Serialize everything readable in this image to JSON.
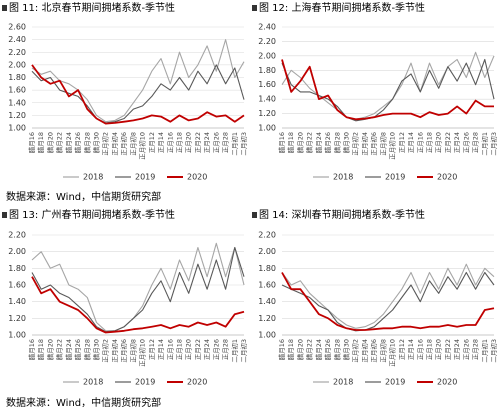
{
  "chart_data": [
    {
      "type": "line",
      "title": "图 11:  北京春节期间拥堵系数-季节性",
      "categories": [
        "腊月16",
        "腊月18",
        "腊月20",
        "腊月22",
        "腊月24",
        "腊月26",
        "腊月28",
        "腊月30",
        "正月初2",
        "正月初4",
        "正月初6",
        "正月初8",
        "正月初10",
        "正月12",
        "正月14",
        "正月16",
        "正月18",
        "正月20",
        "正月22",
        "正月24",
        "正月26",
        "正月28",
        "二月初1",
        "二月初3"
      ],
      "series": [
        {
          "name": "2018",
          "color": "#a6a6a6",
          "values": [
            1.95,
            1.85,
            1.9,
            1.75,
            1.7,
            1.6,
            1.45,
            1.2,
            1.1,
            1.12,
            1.2,
            1.4,
            1.6,
            1.9,
            2.1,
            1.7,
            2.2,
            1.8,
            2.0,
            2.3,
            1.9,
            2.4,
            1.8,
            2.05
          ]
        },
        {
          "name": "2019",
          "color": "#595959",
          "values": [
            1.9,
            1.75,
            1.8,
            1.6,
            1.55,
            1.5,
            1.35,
            1.15,
            1.08,
            1.1,
            1.15,
            1.3,
            1.35,
            1.5,
            1.7,
            1.6,
            1.8,
            1.6,
            1.9,
            1.7,
            2.0,
            1.7,
            1.95,
            1.45
          ]
        },
        {
          "name": "2020",
          "color": "#c00000",
          "values": [
            2.0,
            1.8,
            1.7,
            1.75,
            1.5,
            1.6,
            1.3,
            1.15,
            1.07,
            1.08,
            1.1,
            1.12,
            1.15,
            1.2,
            1.18,
            1.1,
            1.2,
            1.12,
            1.15,
            1.25,
            1.18,
            1.2,
            1.1,
            1.2
          ]
        }
      ],
      "ylim": [
        1.0,
        2.6
      ],
      "yticks": [
        {
          "value": 1.0,
          "label": "1.00"
        },
        {
          "value": 1.2,
          "label": "1.20"
        },
        {
          "value": 1.4,
          "label": "1.40"
        },
        {
          "value": 1.6,
          "label": "1.60"
        },
        {
          "value": 1.8,
          "label": "1.80"
        },
        {
          "value": 2.0,
          "label": "2.00"
        },
        {
          "value": 2.2,
          "label": "2.20"
        },
        {
          "value": 2.4,
          "label": "2.40"
        },
        {
          "value": 2.6,
          "label": "2.60"
        }
      ],
      "grid": true
    },
    {
      "type": "line",
      "title": "图 12:  上海春节期间拥堵系数-季节性",
      "categories": [
        "腊月16",
        "腊月18",
        "腊月20",
        "腊月22",
        "腊月24",
        "腊月26",
        "腊月28",
        "腊月30",
        "正月初2",
        "正月初4",
        "正月初6",
        "正月初8",
        "正月初10",
        "正月12",
        "正月14",
        "正月16",
        "正月18",
        "正月20",
        "正月22",
        "正月24",
        "正月26",
        "正月28",
        "二月初1",
        "二月初3"
      ],
      "series": [
        {
          "name": "2018",
          "color": "#a6a6a6",
          "values": [
            1.6,
            1.8,
            1.7,
            1.55,
            1.45,
            1.35,
            1.25,
            1.15,
            1.12,
            1.15,
            1.2,
            1.3,
            1.4,
            1.6,
            1.9,
            1.5,
            1.9,
            1.6,
            1.85,
            1.95,
            1.7,
            2.05,
            1.7,
            2.0
          ]
        },
        {
          "name": "2019",
          "color": "#595959",
          "values": [
            1.9,
            1.6,
            1.5,
            1.5,
            1.45,
            1.4,
            1.3,
            1.15,
            1.1,
            1.12,
            1.15,
            1.25,
            1.4,
            1.65,
            1.75,
            1.5,
            1.8,
            1.55,
            1.85,
            1.65,
            1.9,
            1.6,
            1.95,
            1.4
          ]
        },
        {
          "name": "2020",
          "color": "#c00000",
          "values": [
            1.95,
            1.5,
            1.65,
            1.85,
            1.4,
            1.45,
            1.25,
            1.15,
            1.12,
            1.13,
            1.15,
            1.18,
            1.2,
            1.2,
            1.2,
            1.15,
            1.22,
            1.18,
            1.2,
            1.3,
            1.2,
            1.38,
            1.3,
            1.3
          ]
        }
      ],
      "ylim": [
        1.0,
        2.4
      ],
      "yticks": [
        {
          "value": 1.0,
          "label": "1.00"
        },
        {
          "value": 1.2,
          "label": "1.20"
        },
        {
          "value": 1.4,
          "label": "1.40"
        },
        {
          "value": 1.6,
          "label": "1.60"
        },
        {
          "value": 1.8,
          "label": "1.80"
        },
        {
          "value": 2.0,
          "label": "2.00"
        },
        {
          "value": 2.2,
          "label": "2.20"
        },
        {
          "value": 2.4,
          "label": "2.40"
        }
      ],
      "grid": true
    },
    {
      "type": "line",
      "title": "图 13:  广州春节期间拥堵系数-季节性",
      "categories": [
        "腊月16",
        "腊月18",
        "腊月20",
        "腊月22",
        "腊月24",
        "腊月26",
        "腊月28",
        "腊月30",
        "正月初2",
        "正月初4",
        "正月初6",
        "正月初8",
        "正月初10",
        "正月12",
        "正月14",
        "正月16",
        "正月18",
        "正月20",
        "正月22",
        "正月24",
        "正月26",
        "正月28",
        "二月初1",
        "二月初3"
      ],
      "series": [
        {
          "name": "2018",
          "color": "#a6a6a6",
          "values": [
            1.9,
            2.0,
            1.8,
            1.85,
            1.6,
            1.55,
            1.45,
            1.15,
            1.05,
            1.05,
            1.1,
            1.2,
            1.35,
            1.6,
            1.8,
            1.55,
            1.9,
            1.65,
            2.05,
            1.7,
            2.1,
            1.7,
            2.05,
            1.6
          ]
        },
        {
          "name": "2019",
          "color": "#595959",
          "values": [
            1.75,
            1.55,
            1.6,
            1.5,
            1.45,
            1.35,
            1.25,
            1.1,
            1.04,
            1.05,
            1.1,
            1.2,
            1.3,
            1.5,
            1.65,
            1.4,
            1.75,
            1.5,
            1.85,
            1.55,
            1.9,
            1.55,
            2.05,
            1.7
          ]
        },
        {
          "name": "2020",
          "color": "#c00000",
          "values": [
            1.7,
            1.5,
            1.55,
            1.4,
            1.35,
            1.3,
            1.2,
            1.08,
            1.03,
            1.04,
            1.05,
            1.07,
            1.08,
            1.1,
            1.12,
            1.08,
            1.12,
            1.1,
            1.15,
            1.12,
            1.15,
            1.1,
            1.25,
            1.28
          ]
        }
      ],
      "ylim": [
        1.0,
        2.2
      ],
      "yticks": [
        {
          "value": 1.0,
          "label": "1.00"
        },
        {
          "value": 1.2,
          "label": "1.20"
        },
        {
          "value": 1.4,
          "label": "1.40"
        },
        {
          "value": 1.6,
          "label": "1.60"
        },
        {
          "value": 1.8,
          "label": "1.80"
        },
        {
          "value": 2.0,
          "label": "2.00"
        },
        {
          "value": 2.2,
          "label": "2.20"
        }
      ],
      "grid": true
    },
    {
      "type": "line",
      "title": "图 14:  深圳春节期间拥堵系数-季节性",
      "categories": [
        "腊月16",
        "腊月18",
        "腊月20",
        "腊月22",
        "腊月24",
        "腊月26",
        "腊月28",
        "腊月30",
        "正月初2",
        "正月初4",
        "正月初6",
        "正月初8",
        "正月初10",
        "正月12",
        "正月14",
        "正月16",
        "正月18",
        "正月20",
        "正月22",
        "正月24",
        "正月26",
        "正月28",
        "二月初1",
        "二月初3"
      ],
      "series": [
        {
          "name": "2018",
          "color": "#a6a6a6",
          "values": [
            1.75,
            1.6,
            1.65,
            1.5,
            1.4,
            1.3,
            1.2,
            1.12,
            1.08,
            1.1,
            1.15,
            1.25,
            1.4,
            1.55,
            1.75,
            1.5,
            1.75,
            1.55,
            1.8,
            1.6,
            1.85,
            1.6,
            1.8,
            1.7
          ]
        },
        {
          "name": "2019",
          "color": "#595959",
          "values": [
            1.6,
            1.55,
            1.5,
            1.45,
            1.35,
            1.3,
            1.15,
            1.08,
            1.05,
            1.06,
            1.1,
            1.2,
            1.3,
            1.45,
            1.6,
            1.4,
            1.65,
            1.5,
            1.7,
            1.55,
            1.75,
            1.55,
            1.75,
            1.6
          ]
        },
        {
          "name": "2020",
          "color": "#c00000",
          "values": [
            1.75,
            1.55,
            1.55,
            1.4,
            1.25,
            1.2,
            1.12,
            1.08,
            1.06,
            1.06,
            1.07,
            1.08,
            1.08,
            1.1,
            1.1,
            1.08,
            1.1,
            1.1,
            1.12,
            1.1,
            1.12,
            1.12,
            1.3,
            1.32
          ]
        }
      ],
      "ylim": [
        1.0,
        2.2
      ],
      "yticks": [
        {
          "value": 1.0,
          "label": "1.00"
        },
        {
          "value": 1.2,
          "label": "1.20"
        },
        {
          "value": 1.4,
          "label": "1.40"
        },
        {
          "value": 1.6,
          "label": "1.60"
        },
        {
          "value": 1.8,
          "label": "1.80"
        },
        {
          "value": 2.0,
          "label": "2.00"
        },
        {
          "value": 2.2,
          "label": "2.20"
        }
      ],
      "grid": true
    }
  ],
  "sources": [
    "数据来源：Wind，中信期货研究部",
    "数据来源：Wind，中信期货研究部"
  ]
}
